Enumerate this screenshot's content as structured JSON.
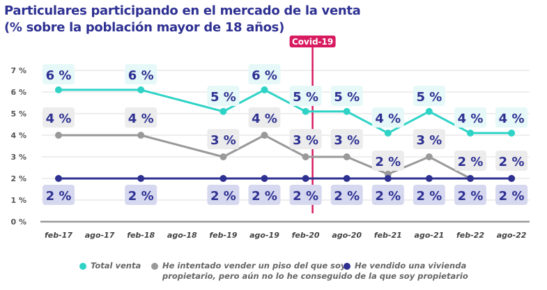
{
  "title_line1": "Particulares participando en el mercado de la venta",
  "title_line2": "(% sobre la población mayor de 18 años)",
  "chart_data": {
    "type": "line",
    "categories": [
      "feb-17",
      "ago-17",
      "feb-18",
      "ago-18",
      "feb-19",
      "ago-19",
      "feb-20",
      "ago-20",
      "feb-21",
      "ago-21",
      "feb-22",
      "ago-22"
    ],
    "ylim": [
      0,
      7
    ],
    "yticks": [
      "0 %",
      "1 %",
      "2 %",
      "3 %",
      "4 %",
      "5 %",
      "6 %",
      "7 %"
    ],
    "grid": true,
    "legend_position": "bottom",
    "annotation": {
      "label": "Covid-19",
      "between": [
        "feb-20",
        "ago-20"
      ],
      "color": "#d81b60"
    },
    "series": [
      {
        "name": "Total venta",
        "color": "#2ed3c6",
        "label_bg": "#e6f8f8",
        "values": [
          6.1,
          null,
          6.1,
          null,
          5.1,
          6.1,
          5.1,
          5.1,
          4.1,
          5.1,
          4.1,
          4.1
        ],
        "labels": [
          "6 %",
          null,
          "6 %",
          null,
          "5 %",
          "6 %",
          "5 %",
          "5 %",
          "4 %",
          "5 %",
          "4 %",
          "4 %"
        ]
      },
      {
        "name": "He intentado vender un piso del que soy propietario, pero aún no lo he conseguido",
        "name_line1": "He intentado vender un piso del que soy",
        "name_line2": "propietario, pero aún no lo he conseguido",
        "color": "#999999",
        "label_bg": "#ececec",
        "values": [
          4.0,
          null,
          4.0,
          null,
          3.0,
          4.0,
          3.0,
          3.0,
          2.2,
          3.0,
          2.0,
          2.0
        ],
        "labels": [
          "4 %",
          null,
          "4 %",
          null,
          "3 %",
          "4 %",
          "3 %",
          "3 %",
          "2 %",
          "3 %",
          "2 %",
          "2 %"
        ]
      },
      {
        "name": "He vendido una vivienda de la que soy propietario",
        "name_line1": "He vendido una vivienda",
        "name_line2": "de la que soy propietario",
        "color": "#2e3192",
        "label_bg": "#d6d8ef",
        "values": [
          2.0,
          null,
          2.0,
          null,
          2.0,
          2.0,
          2.0,
          2.0,
          2.0,
          2.0,
          2.0,
          2.0
        ],
        "labels": [
          "2 %",
          null,
          "2 %",
          null,
          "2 %",
          "2 %",
          "2 %",
          "2 %",
          "2 %",
          "2 %",
          "2 %",
          "2 %"
        ]
      }
    ]
  }
}
